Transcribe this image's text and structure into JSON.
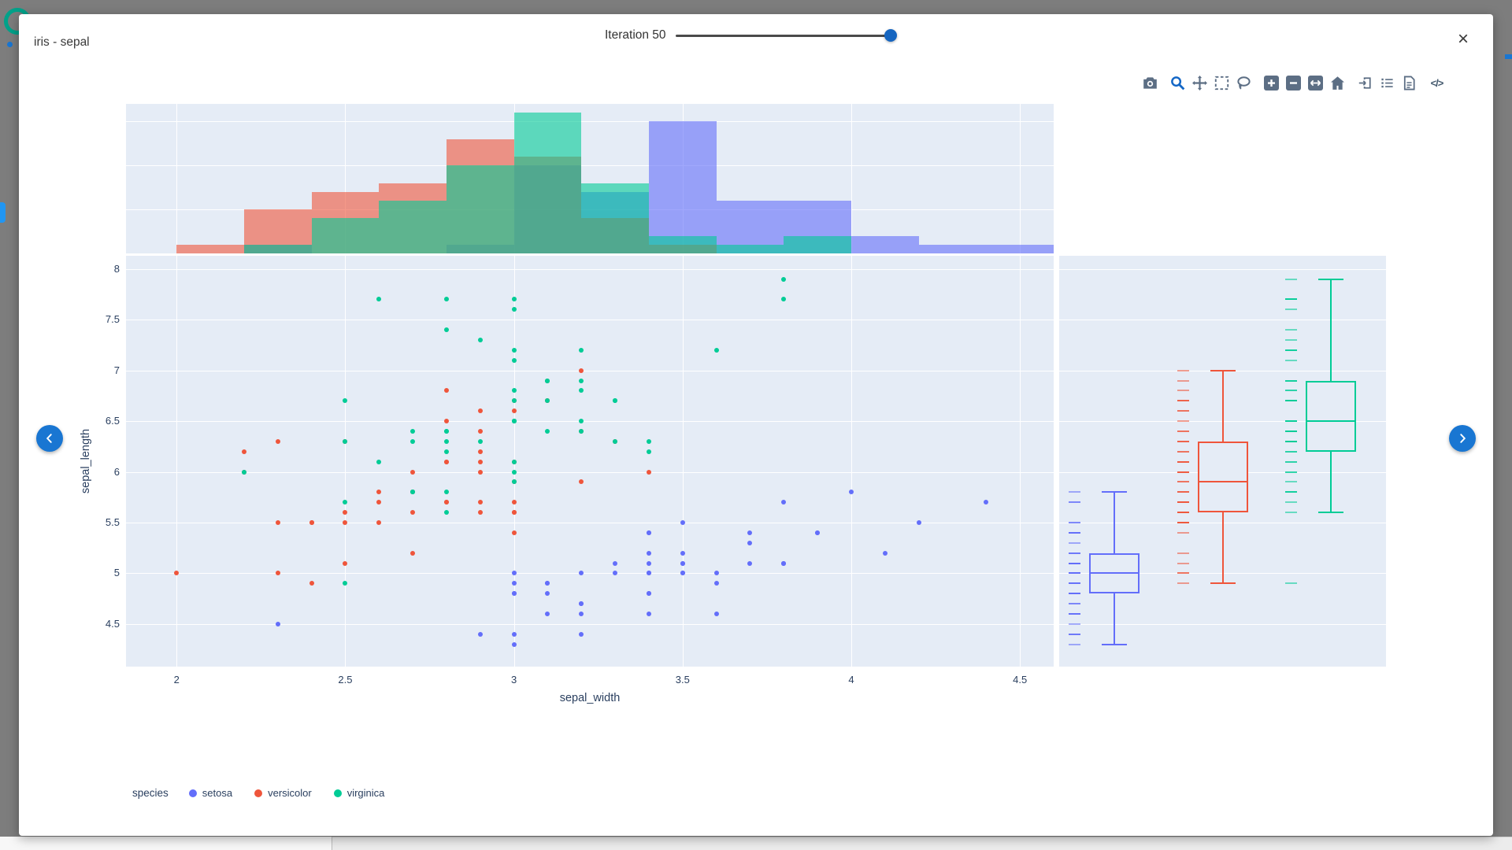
{
  "window": {
    "title": "iris - sepal",
    "iteration_label": "Iteration 50",
    "slider_percent": 97.5,
    "close_label": "×"
  },
  "modebar": {
    "icons": [
      "download-plot",
      "zoom",
      "pan",
      "box-select",
      "lasso-select",
      "zoom-in",
      "zoom-out",
      "autoscale",
      "reset-axes",
      "panel-toggle",
      "list-view",
      "data-report",
      "code-view"
    ],
    "code_label": "</>"
  },
  "legend": {
    "title": "species",
    "items": [
      {
        "label": "setosa",
        "color": "#636EFA"
      },
      {
        "label": "versicolor",
        "color": "#EF553B"
      },
      {
        "label": "virginica",
        "color": "#00CC96"
      }
    ]
  },
  "chart_data": {
    "type": "scatter",
    "xlabel": "sepal_width",
    "ylabel": "sepal_length",
    "x_range": [
      1.85,
      4.6
    ],
    "y_range": [
      4.08,
      8.13
    ],
    "x_ticks": [
      2,
      2.5,
      3,
      3.5,
      4,
      4.5
    ],
    "y_ticks": [
      4.5,
      5,
      5.5,
      6,
      6.5,
      7,
      7.5,
      8
    ],
    "grid": true,
    "plot_bg": "#E5ECF6",
    "marginal_top": {
      "type": "histogram",
      "bin_start": 2.0,
      "bin_size": 0.2,
      "count_gridlines": [
        5,
        10,
        15
      ],
      "count_max": 17,
      "opacity": 0.6
    },
    "marginal_right": {
      "type": "box",
      "show_all_points_as_dashes": true
    },
    "series": [
      {
        "name": "setosa",
        "color": "#636EFA",
        "x": [
          3.5,
          3.0,
          3.2,
          3.1,
          3.6,
          3.9,
          3.4,
          3.4,
          2.9,
          3.1,
          3.7,
          3.4,
          3.0,
          3.0,
          4.0,
          4.4,
          3.9,
          3.5,
          3.8,
          3.8,
          3.4,
          3.7,
          3.6,
          3.3,
          3.4,
          3.0,
          3.4,
          3.5,
          3.4,
          3.2,
          3.1,
          3.4,
          4.1,
          4.2,
          3.1,
          3.2,
          3.5,
          3.6,
          3.0,
          3.4,
          3.5,
          2.3,
          3.2,
          3.5,
          3.8,
          3.0,
          3.8,
          3.2,
          3.7,
          3.3
        ],
        "y": [
          5.1,
          4.9,
          4.7,
          4.6,
          5.0,
          5.4,
          4.6,
          5.0,
          4.4,
          4.9,
          5.4,
          4.8,
          4.8,
          4.3,
          5.8,
          5.7,
          5.4,
          5.1,
          5.7,
          5.1,
          5.4,
          5.1,
          4.6,
          5.1,
          4.8,
          5.0,
          5.0,
          5.2,
          5.2,
          4.7,
          4.8,
          5.4,
          5.2,
          5.5,
          4.9,
          5.0,
          5.5,
          4.9,
          4.4,
          5.1,
          5.0,
          4.5,
          4.4,
          5.0,
          5.1,
          4.8,
          5.1,
          4.6,
          5.3,
          5.0
        ]
      },
      {
        "name": "versicolor",
        "color": "#EF553B",
        "x": [
          3.2,
          3.2,
          3.1,
          2.3,
          2.8,
          2.8,
          3.3,
          2.4,
          2.9,
          2.7,
          2.0,
          3.0,
          2.2,
          2.9,
          2.9,
          3.1,
          3.0,
          2.7,
          2.2,
          2.5,
          3.2,
          2.8,
          2.5,
          2.8,
          2.9,
          3.0,
          2.8,
          3.0,
          2.9,
          2.6,
          2.4,
          2.4,
          2.7,
          2.7,
          3.0,
          3.4,
          3.1,
          2.3,
          3.0,
          2.5,
          2.6,
          3.0,
          2.6,
          2.3,
          2.7,
          3.0,
          2.9,
          2.9,
          2.5,
          2.8
        ],
        "y": [
          7.0,
          6.4,
          6.9,
          5.5,
          6.5,
          5.7,
          6.3,
          4.9,
          6.6,
          5.2,
          5.0,
          5.9,
          6.0,
          6.1,
          5.6,
          6.7,
          5.6,
          5.8,
          6.2,
          5.6,
          5.9,
          6.1,
          6.3,
          6.1,
          6.4,
          6.6,
          6.8,
          6.7,
          6.0,
          5.7,
          5.5,
          5.5,
          5.8,
          6.0,
          5.4,
          6.0,
          6.7,
          6.3,
          5.6,
          5.5,
          5.5,
          6.1,
          5.8,
          5.0,
          5.6,
          5.7,
          5.7,
          6.2,
          5.1,
          5.7
        ]
      },
      {
        "name": "virginica",
        "color": "#00CC96",
        "x": [
          3.3,
          2.7,
          3.0,
          2.9,
          3.0,
          3.0,
          2.5,
          2.9,
          2.5,
          3.6,
          3.2,
          2.7,
          3.0,
          2.5,
          2.8,
          3.2,
          3.0,
          3.8,
          2.6,
          2.2,
          3.2,
          2.8,
          2.8,
          2.7,
          3.3,
          3.2,
          2.8,
          3.0,
          2.8,
          3.0,
          2.8,
          3.8,
          2.8,
          2.8,
          2.6,
          3.0,
          3.4,
          3.1,
          3.0,
          3.1,
          3.1,
          3.1,
          2.7,
          3.2,
          3.3,
          3.0,
          2.5,
          3.0,
          3.4,
          3.0
        ],
        "y": [
          6.3,
          5.8,
          7.1,
          6.3,
          6.5,
          7.6,
          4.9,
          7.3,
          6.7,
          7.2,
          6.5,
          6.4,
          6.8,
          5.7,
          5.8,
          6.4,
          6.5,
          7.7,
          7.7,
          6.0,
          6.9,
          5.6,
          7.7,
          6.3,
          6.7,
          7.2,
          6.2,
          6.1,
          6.4,
          7.2,
          7.4,
          7.9,
          6.4,
          6.3,
          6.1,
          7.7,
          6.3,
          6.4,
          6.0,
          6.9,
          6.7,
          6.9,
          5.8,
          6.8,
          6.7,
          6.7,
          6.3,
          6.5,
          6.2,
          5.9
        ]
      }
    ]
  }
}
